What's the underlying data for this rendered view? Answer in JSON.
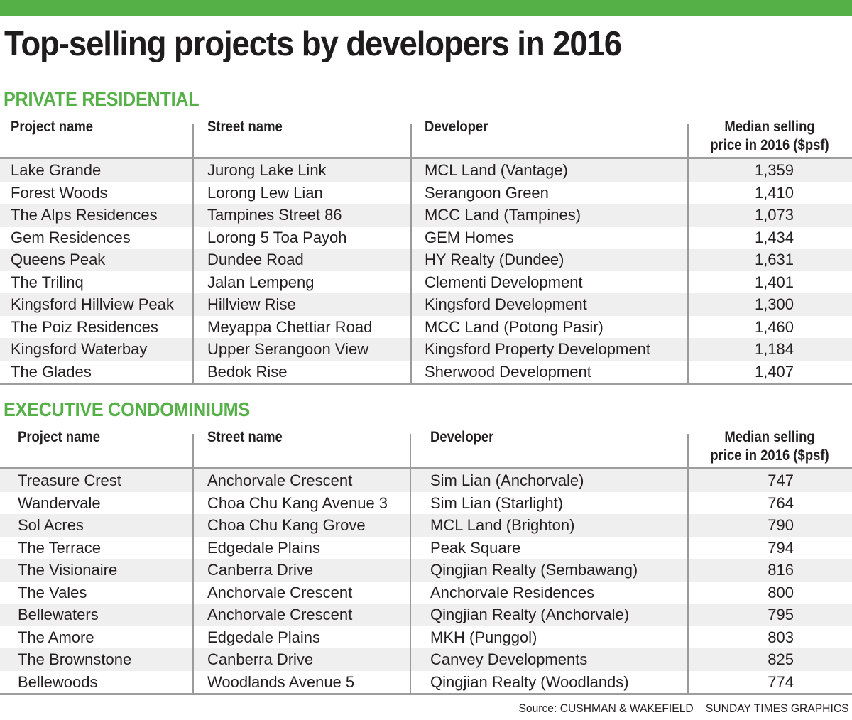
{
  "title": "Top-selling projects by developers in 2016",
  "colors": {
    "accent": "#55b047",
    "row_shade": "#efeff0",
    "rule": "#9d9d9d",
    "text": "#231f20"
  },
  "columns": {
    "project": "Project name",
    "street": "Street name",
    "developer": "Developer",
    "price_line1": "Median selling",
    "price_line2": "price in 2016 ($psf)"
  },
  "sections": [
    {
      "title": "PRIVATE RESIDENTIAL",
      "rows": [
        {
          "project": "Lake Grande",
          "street": "Jurong Lake Link",
          "developer": "MCL Land (Vantage)",
          "price": "1,359"
        },
        {
          "project": "Forest Woods",
          "street": "Lorong Lew Lian",
          "developer": "Serangoon Green",
          "price": "1,410"
        },
        {
          "project": "The Alps Residences",
          "street": "Tampines Street 86",
          "developer": "MCC Land (Tampines)",
          "price": "1,073"
        },
        {
          "project": "Gem Residences",
          "street": "Lorong 5 Toa Payoh",
          "developer": "GEM Homes",
          "price": "1,434"
        },
        {
          "project": "Queens Peak",
          "street": "Dundee Road",
          "developer": "HY Realty (Dundee)",
          "price": "1,631"
        },
        {
          "project": "The Trilinq",
          "street": "Jalan Lempeng",
          "developer": "Clementi Development",
          "price": "1,401"
        },
        {
          "project": "Kingsford Hillview Peak",
          "street": "Hillview Rise",
          "developer": "Kingsford Development",
          "price": "1,300"
        },
        {
          "project": "The Poiz Residences",
          "street": "Meyappa Chettiar Road",
          "developer": "MCC Land (Potong Pasir)",
          "price": "1,460"
        },
        {
          "project": "Kingsford Waterbay",
          "street": "Upper Serangoon View",
          "developer": "Kingsford Property Development",
          "price": "1,184"
        },
        {
          "project": "The Glades",
          "street": "Bedok Rise",
          "developer": "Sherwood Development",
          "price": "1,407"
        }
      ]
    },
    {
      "title": "EXECUTIVE CONDOMINIUMS",
      "rows": [
        {
          "project": "Treasure Crest",
          "street": "Anchorvale Crescent",
          "developer": "Sim Lian (Anchorvale)",
          "price": "747"
        },
        {
          "project": "Wandervale",
          "street": "Choa Chu Kang Avenue 3",
          "developer": "Sim Lian (Starlight)",
          "price": "764"
        },
        {
          "project": "Sol Acres",
          "street": "Choa Chu Kang Grove",
          "developer": "MCL Land (Brighton)",
          "price": "790"
        },
        {
          "project": "The Terrace",
          "street": "Edgedale Plains",
          "developer": "Peak Square",
          "price": "794"
        },
        {
          "project": "The Visionaire",
          "street": "Canberra Drive",
          "developer": "Qingjian Realty (Sembawang)",
          "price": "816"
        },
        {
          "project": "The Vales",
          "street": "Anchorvale Crescent",
          "developer": "Anchorvale Residences",
          "price": "800"
        },
        {
          "project": "Bellewaters",
          "street": "Anchorvale Crescent",
          "developer": "Qingjian Realty (Anchorvale)",
          "price": "795"
        },
        {
          "project": "The Amore",
          "street": "Edgedale Plains",
          "developer": "MKH (Punggol)",
          "price": "803"
        },
        {
          "project": "The Brownstone",
          "street": "Canberra Drive",
          "developer": "Canvey Developments",
          "price": "825"
        },
        {
          "project": "Bellewoods",
          "street": "Woodlands Avenue 5",
          "developer": "Qingjian Realty (Woodlands)",
          "price": "774"
        }
      ]
    }
  ],
  "footer": {
    "source": "Source: CUSHMAN & WAKEFIELD",
    "credit": "SUNDAY TIMES GRAPHICS"
  }
}
